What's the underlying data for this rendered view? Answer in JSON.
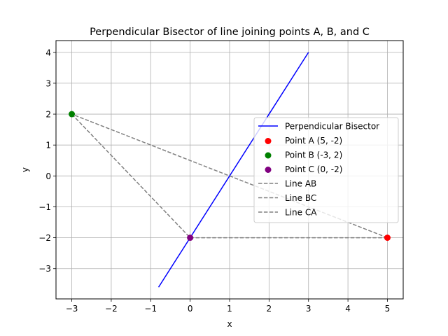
{
  "chart_data": {
    "type": "line",
    "title": "Perpendicular Bisector of line joining points A, B, and C",
    "xlabel": "x",
    "ylabel": "y",
    "xlim": [
      -3.4,
      5.4
    ],
    "ylim": [
      -3.98,
      4.38
    ],
    "xticks": [
      -3,
      -2,
      -1,
      0,
      1,
      2,
      3,
      4,
      5
    ],
    "yticks": [
      -3,
      -2,
      -1,
      0,
      1,
      2,
      3,
      4
    ],
    "grid": true,
    "legend_position": "center-right",
    "series": [
      {
        "name": "Perpendicular Bisector",
        "kind": "line",
        "style": "solid",
        "color": "#0000ff",
        "x": [
          -0.8,
          3.0
        ],
        "y": [
          -3.6,
          4.0
        ]
      },
      {
        "name": "Point A (5, -2)",
        "kind": "scatter",
        "color": "#ff0000",
        "x": [
          5
        ],
        "y": [
          -2
        ]
      },
      {
        "name": "Point B (-3, 2)",
        "kind": "scatter",
        "color": "#008000",
        "x": [
          -3
        ],
        "y": [
          2
        ]
      },
      {
        "name": "Point C (0, -2)",
        "kind": "scatter",
        "color": "#800080",
        "x": [
          0
        ],
        "y": [
          -2
        ]
      },
      {
        "name": "Line AB",
        "kind": "line",
        "style": "dashed",
        "color": "#808080",
        "x": [
          5,
          -3
        ],
        "y": [
          -2,
          2
        ]
      },
      {
        "name": "Line BC",
        "kind": "line",
        "style": "dashed",
        "color": "#808080",
        "x": [
          -3,
          0
        ],
        "y": [
          2,
          -2
        ]
      },
      {
        "name": "Line CA",
        "kind": "line",
        "style": "dashed",
        "color": "#808080",
        "x": [
          0,
          5
        ],
        "y": [
          -2,
          -2
        ]
      }
    ]
  }
}
